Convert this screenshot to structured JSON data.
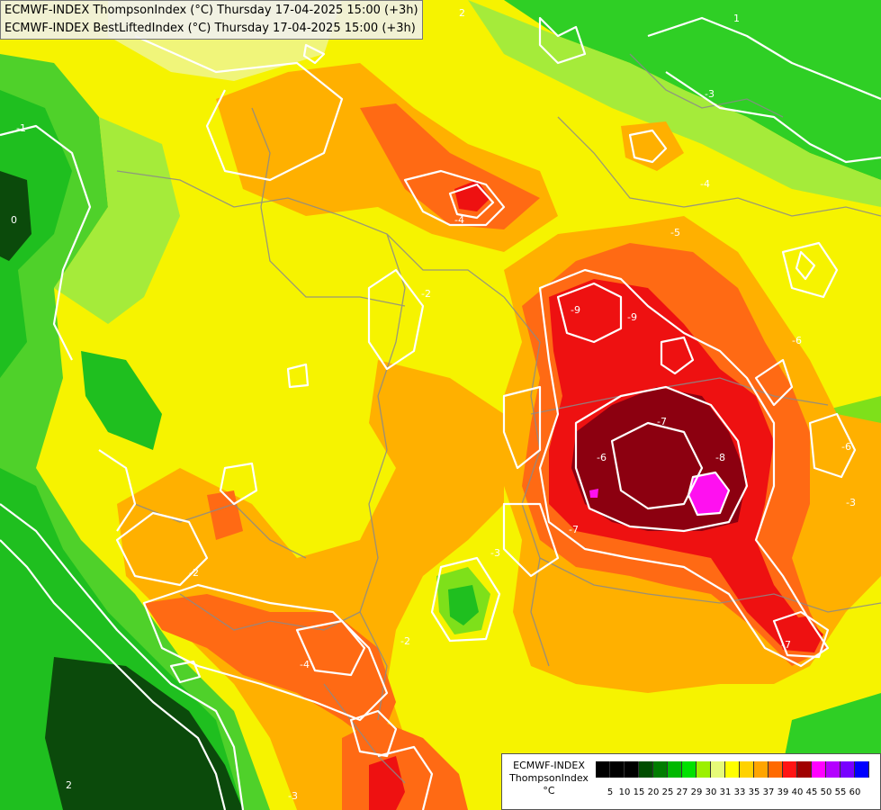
{
  "header": {
    "line1": "ECMWF-INDEX ThompsonIndex (°C) Thursday 17-04-2025 15:00 (+3h)",
    "line2": "ECMWF-INDEX BestLiftedIndex (°C) Thursday 17-04-2025 15:00 (+3h)"
  },
  "legend": {
    "title": "ECMWF-INDEX",
    "subtitle": "ThompsonIndex",
    "unit": "°C",
    "ticks": [
      "5",
      "10",
      "15",
      "20",
      "25",
      "27",
      "29",
      "30",
      "31",
      "33",
      "35",
      "37",
      "39",
      "40",
      "45",
      "50",
      "55",
      "60"
    ],
    "colors": [
      "#000000",
      "#000000",
      "#000000",
      "#004d00",
      "#007d00",
      "#00b800",
      "#00e100",
      "#9cf000",
      "#e6fa78",
      "#ffff00",
      "#ffd200",
      "#ffa500",
      "#ff6a00",
      "#ff1414",
      "#a00000",
      "#ff00ff",
      "#b400ff",
      "#7800ff",
      "#0000ff"
    ]
  },
  "contour_labels": [
    "-2",
    "-1",
    "0",
    "1",
    "2",
    "-3",
    "-4",
    "-5",
    "-6",
    "-7",
    "-8",
    "-9"
  ],
  "palette": {
    "dark_green": "#0b4a0b",
    "green": "#1fbf1f",
    "light_green": "#7ee01a",
    "pale_yellow": "#f0f57a",
    "yellow": "#f6f300",
    "orange_light": "#ffc400",
    "orange": "#ff9a1e",
    "red_orange": "#ff5a14",
    "red": "#ee1111",
    "dark_red": "#8c0010",
    "magenta": "#ff10f0"
  }
}
